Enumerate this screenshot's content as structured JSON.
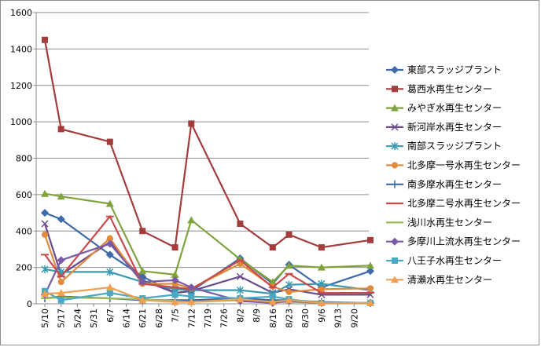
{
  "chart_data": {
    "type": "line",
    "title": "",
    "xlabel": "",
    "ylabel": "",
    "ylim": [
      0,
      1600
    ],
    "yticks": [
      0,
      200,
      400,
      600,
      800,
      1000,
      1200,
      1400,
      1600
    ],
    "x_tick_labels": [
      "5/10",
      "5/17",
      "5/24",
      "5/31",
      "6/7",
      "6/14",
      "6/21",
      "6/28",
      "7/5",
      "7/12",
      "7/19",
      "7/26",
      "8/2",
      "8/9",
      "8/16",
      "8/23",
      "8/30",
      "9/6",
      "9/13",
      "9/20"
    ],
    "grid": "horizontal",
    "legend_position": "right",
    "series": [
      {
        "name": "東部スラッジプラント",
        "color": "#3d6aa8",
        "marker": "diamond",
        "points": [
          [
            "5/10",
            500
          ],
          [
            "5/17",
            465
          ],
          [
            "6/7",
            270
          ],
          [
            "6/21",
            150
          ],
          [
            "7/5",
            60
          ],
          [
            "7/12",
            70
          ],
          [
            "8/2",
            250
          ],
          [
            "8/16",
            110
          ],
          [
            "8/23",
            215
          ],
          [
            "9/6",
            90
          ],
          [
            "9/27",
            180
          ]
        ]
      },
      {
        "name": "葛西水再生センター",
        "color": "#a53c3c",
        "marker": "square",
        "points": [
          [
            "5/10",
            1450
          ],
          [
            "5/17",
            960
          ],
          [
            "6/7",
            890
          ],
          [
            "6/21",
            400
          ],
          [
            "7/5",
            310
          ],
          [
            "7/12",
            990
          ],
          [
            "8/2",
            440
          ],
          [
            "8/16",
            310
          ],
          [
            "8/23",
            380
          ],
          [
            "9/6",
            310
          ],
          [
            "9/27",
            350
          ]
        ]
      },
      {
        "name": "みやぎ水再生センター",
        "color": "#7fa33c",
        "marker": "triangle",
        "points": [
          [
            "5/10",
            605
          ],
          [
            "5/17",
            590
          ],
          [
            "6/7",
            550
          ],
          [
            "6/21",
            180
          ],
          [
            "7/5",
            160
          ],
          [
            "7/12",
            460
          ],
          [
            "8/2",
            245
          ],
          [
            "8/16",
            120
          ],
          [
            "8/23",
            210
          ],
          [
            "9/6",
            200
          ],
          [
            "9/27",
            210
          ]
        ]
      },
      {
        "name": "新河岸水再生センター",
        "color": "#6a4a8c",
        "marker": "x",
        "points": [
          [
            "5/10",
            440
          ],
          [
            "5/17",
            160
          ],
          [
            "6/7",
            340
          ],
          [
            "6/21",
            130
          ],
          [
            "7/5",
            60
          ],
          [
            "7/12",
            70
          ],
          [
            "8/2",
            150
          ],
          [
            "8/16",
            60
          ],
          [
            "8/23",
            80
          ],
          [
            "9/6",
            50
          ],
          [
            "9/27",
            50
          ]
        ]
      },
      {
        "name": "南部スラッジプラント",
        "color": "#3a9bb0",
        "marker": "asterisk",
        "points": [
          [
            "5/10",
            190
          ],
          [
            "5/17",
            175
          ],
          [
            "6/7",
            175
          ],
          [
            "6/21",
            120
          ],
          [
            "7/5",
            80
          ],
          [
            "7/12",
            75
          ],
          [
            "8/2",
            75
          ],
          [
            "8/16",
            55
          ],
          [
            "8/23",
            105
          ],
          [
            "9/6",
            110
          ],
          [
            "9/27",
            75
          ]
        ]
      },
      {
        "name": "北多摩一号水再生センター",
        "color": "#e08a3a",
        "marker": "circle",
        "points": [
          [
            "5/10",
            380
          ],
          [
            "5/17",
            120
          ],
          [
            "6/7",
            360
          ],
          [
            "6/21",
            110
          ],
          [
            "7/5",
            110
          ],
          [
            "7/12",
            85
          ],
          [
            "8/2",
            220
          ],
          [
            "8/16",
            95
          ],
          [
            "8/23",
            65
          ],
          [
            "9/6",
            80
          ],
          [
            "9/27",
            85
          ]
        ]
      },
      {
        "name": "南多摩水再生センター",
        "color": "#3d6aa8",
        "marker": "plus",
        "points": [
          [
            "5/10",
            30
          ],
          [
            "5/17",
            40
          ],
          [
            "6/7",
            30
          ],
          [
            "6/21",
            20
          ],
          [
            "7/5",
            20
          ],
          [
            "7/12",
            20
          ],
          [
            "8/2",
            30
          ],
          [
            "8/16",
            20
          ],
          [
            "8/23",
            20
          ],
          [
            "9/6",
            10
          ],
          [
            "9/27",
            5
          ]
        ]
      },
      {
        "name": "北多摩二号水再生センター",
        "color": "#c84a4a",
        "marker": "dash",
        "points": [
          [
            "5/10",
            270
          ],
          [
            "5/17",
            150
          ],
          [
            "6/7",
            480
          ],
          [
            "6/21",
            110
          ],
          [
            "7/5",
            90
          ],
          [
            "7/12",
            80
          ],
          [
            "8/2",
            240
          ],
          [
            "8/16",
            90
          ],
          [
            "8/23",
            165
          ],
          [
            "9/6",
            60
          ],
          [
            "9/27",
            60
          ]
        ]
      },
      {
        "name": "浅川水再生センター",
        "color": "#9cba5a",
        "marker": "dash",
        "points": [
          [
            "5/10",
            30
          ],
          [
            "5/17",
            35
          ],
          [
            "6/7",
            30
          ],
          [
            "6/21",
            25
          ],
          [
            "7/5",
            15
          ],
          [
            "7/12",
            10
          ],
          [
            "8/2",
            20
          ],
          [
            "8/16",
            10
          ],
          [
            "8/23",
            10
          ],
          [
            "9/6",
            5
          ],
          [
            "9/27",
            5
          ]
        ]
      },
      {
        "name": "多摩川上流水再生センター",
        "color": "#7a5aa8",
        "marker": "diamond",
        "points": [
          [
            "5/10",
            50
          ],
          [
            "5/17",
            240
          ],
          [
            "6/7",
            330
          ],
          [
            "6/21",
            120
          ],
          [
            "7/5",
            130
          ],
          [
            "7/12",
            90
          ],
          [
            "8/2",
            15
          ],
          [
            "8/16",
            5
          ],
          [
            "8/23",
            15
          ],
          [
            "9/6",
            5
          ],
          [
            "9/27",
            5
          ]
        ]
      },
      {
        "name": "八王子水再生センター",
        "color": "#4aa8c0",
        "marker": "square",
        "points": [
          [
            "5/10",
            70
          ],
          [
            "5/17",
            20
          ],
          [
            "6/7",
            60
          ],
          [
            "6/21",
            30
          ],
          [
            "7/5",
            50
          ],
          [
            "7/12",
            40
          ],
          [
            "8/2",
            30
          ],
          [
            "8/16",
            40
          ],
          [
            "8/23",
            25
          ],
          [
            "9/6",
            5
          ],
          [
            "9/27",
            5
          ]
        ]
      },
      {
        "name": "清瀬水再生センター",
        "color": "#f0a050",
        "marker": "triangle",
        "points": [
          [
            "5/10",
            55
          ],
          [
            "5/17",
            60
          ],
          [
            "6/7",
            90
          ],
          [
            "6/21",
            20
          ],
          [
            "7/5",
            10
          ],
          [
            "7/12",
            10
          ],
          [
            "8/2",
            25
          ],
          [
            "8/16",
            10
          ],
          [
            "8/23",
            20
          ],
          [
            "9/6",
            5
          ],
          [
            "9/27",
            5
          ]
        ]
      }
    ]
  }
}
